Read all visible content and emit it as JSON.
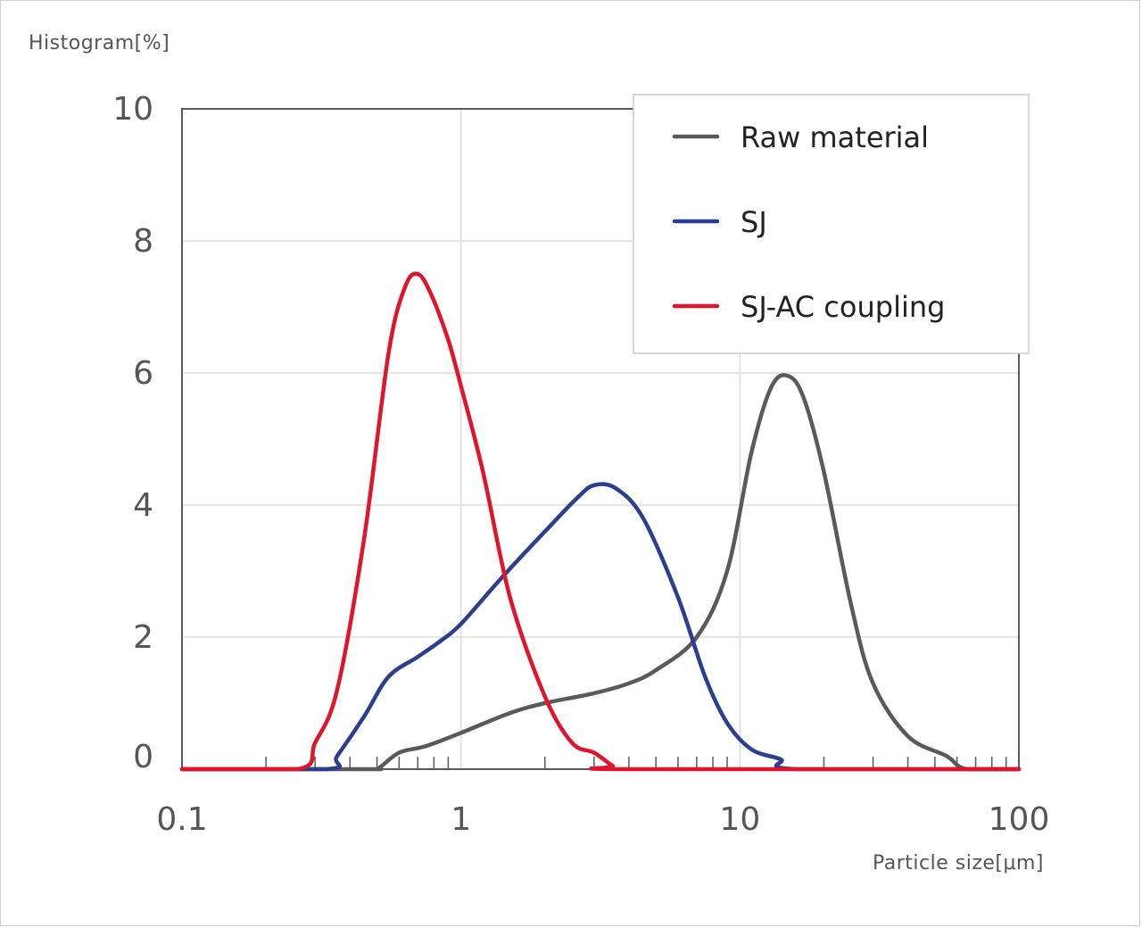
{
  "chart_data": {
    "type": "line",
    "ylabel": "Histogram[%]",
    "xlabel": "Particle size[μm]",
    "xscale": "log",
    "xlim": [
      0.1,
      100
    ],
    "ylim": [
      0,
      10
    ],
    "xticks": [
      0.1,
      1,
      10,
      100
    ],
    "xtick_labels": [
      "0.1",
      "1",
      "10",
      "100"
    ],
    "yticks": [
      0,
      2,
      4,
      6,
      8,
      10
    ],
    "ytick_labels": [
      "0",
      "2",
      "4",
      "6",
      "8",
      "10"
    ],
    "grid": true,
    "legend_position": "top-right",
    "series": [
      {
        "name": "Raw material",
        "color": "#5a5a5a",
        "points": [
          [
            0.1,
            0
          ],
          [
            0.45,
            0
          ],
          [
            0.5,
            0
          ],
          [
            0.6,
            0.25
          ],
          [
            0.75,
            0.35
          ],
          [
            1.0,
            0.55
          ],
          [
            1.5,
            0.85
          ],
          [
            2.0,
            1.0
          ],
          [
            3.0,
            1.15
          ],
          [
            4.0,
            1.3
          ],
          [
            5.0,
            1.5
          ],
          [
            7.0,
            2.0
          ],
          [
            9.0,
            3.0
          ],
          [
            11.0,
            4.8
          ],
          [
            13.0,
            5.8
          ],
          [
            15.0,
            5.95
          ],
          [
            17.0,
            5.6
          ],
          [
            20.0,
            4.5
          ],
          [
            25.0,
            2.5
          ],
          [
            30.0,
            1.3
          ],
          [
            40.0,
            0.5
          ],
          [
            55.0,
            0.2
          ],
          [
            65.0,
            0
          ],
          [
            100,
            0
          ]
        ]
      },
      {
        "name": "SJ",
        "color": "#2b3f8e",
        "points": [
          [
            0.1,
            0
          ],
          [
            0.33,
            0
          ],
          [
            0.36,
            0.2
          ],
          [
            0.45,
            0.8
          ],
          [
            0.55,
            1.4
          ],
          [
            0.7,
            1.7
          ],
          [
            0.85,
            1.95
          ],
          [
            1.0,
            2.2
          ],
          [
            1.4,
            2.9
          ],
          [
            2.0,
            3.6
          ],
          [
            2.6,
            4.1
          ],
          [
            3.0,
            4.3
          ],
          [
            3.6,
            4.25
          ],
          [
            4.5,
            3.8
          ],
          [
            6.0,
            2.6
          ],
          [
            7.5,
            1.4
          ],
          [
            9.0,
            0.7
          ],
          [
            11.0,
            0.3
          ],
          [
            14.0,
            0.15
          ],
          [
            16.0,
            0
          ],
          [
            100,
            0
          ]
        ]
      },
      {
        "name": "SJ-AC coupling",
        "color": "#e0142b",
        "points": [
          [
            0.1,
            0
          ],
          [
            0.26,
            0
          ],
          [
            0.3,
            0.4
          ],
          [
            0.36,
            1.2
          ],
          [
            0.45,
            3.5
          ],
          [
            0.55,
            6.3
          ],
          [
            0.63,
            7.3
          ],
          [
            0.7,
            7.5
          ],
          [
            0.78,
            7.2
          ],
          [
            0.9,
            6.5
          ],
          [
            1.0,
            5.8
          ],
          [
            1.2,
            4.5
          ],
          [
            1.5,
            2.6
          ],
          [
            2.0,
            1.1
          ],
          [
            2.5,
            0.4
          ],
          [
            3.0,
            0.25
          ],
          [
            3.5,
            0.05
          ],
          [
            3.8,
            0
          ],
          [
            100,
            0
          ]
        ]
      }
    ]
  }
}
